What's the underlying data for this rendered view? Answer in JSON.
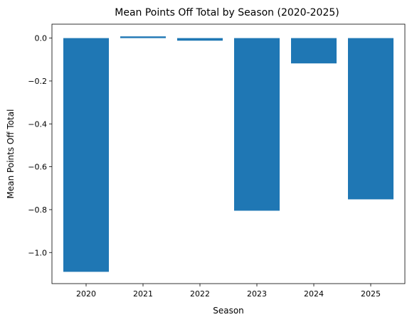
{
  "chart_data": {
    "type": "bar",
    "title": "Mean Points Off Total by Season (2020-2025)",
    "xlabel": "Season",
    "ylabel": "Mean Points Off Total",
    "categories": [
      "2020",
      "2021",
      "2022",
      "2023",
      "2024",
      "2025"
    ],
    "values": [
      -1.09,
      0.008,
      -0.012,
      -0.805,
      -0.118,
      -0.752
    ],
    "ylim": [
      -1.145,
      0.065
    ],
    "yticks": [
      0.0,
      -0.2,
      -0.4,
      -0.6,
      -0.8,
      -1.0
    ],
    "ytick_labels": [
      "0.0",
      "−0.2",
      "−0.4",
      "−0.6",
      "−0.8",
      "−1.0"
    ],
    "grid": false,
    "bar_color": "#1f77b4"
  }
}
